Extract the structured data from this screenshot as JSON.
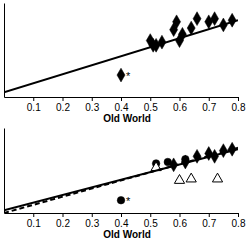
{
  "chart_data": [
    {
      "type": "scatter",
      "xlabel": "Old World",
      "xlim": [
        0,
        0.8
      ],
      "xticks": [
        0.1,
        0.2,
        0.3,
        0.4,
        0.5,
        0.6,
        0.7,
        0.8
      ],
      "ylim": [
        0.3,
        0.9
      ],
      "tick_labels": "x",
      "series": [
        {
          "type": "scatter",
          "marker": "diamond",
          "color": "#000000",
          "x": [
            0.4,
            0.5,
            0.51,
            0.52,
            0.54,
            0.58,
            0.59,
            0.6,
            0.61,
            0.64,
            0.66,
            0.7,
            0.72,
            0.75,
            0.78
          ],
          "values": [
            0.44,
            0.66,
            0.63,
            0.63,
            0.65,
            0.73,
            0.78,
            0.66,
            0.7,
            0.74,
            0.8,
            0.78,
            0.8,
            0.76,
            0.79
          ]
        },
        {
          "type": "line",
          "line_style": "solid",
          "color": "#000000",
          "x": [
            0,
            0.8
          ],
          "values": [
            0.33,
            0.79
          ]
        }
      ],
      "annotations": [
        {
          "text": "*",
          "x": 0.4,
          "y": 0.44
        }
      ]
    },
    {
      "type": "scatter",
      "xlabel": "Old World",
      "xlim": [
        0,
        0.8
      ],
      "xticks": [
        0.1,
        0.2,
        0.3,
        0.4,
        0.5,
        0.6,
        0.7,
        0.8
      ],
      "ylim": [
        0.3,
        0.9
      ],
      "tick_labels": "x",
      "series": [
        {
          "type": "scatter",
          "marker": "diamond",
          "color": "#000000",
          "x": [
            0.58,
            0.62,
            0.66,
            0.7,
            0.72,
            0.75,
            0.78
          ],
          "values": [
            0.64,
            0.66,
            0.7,
            0.72,
            0.7,
            0.74,
            0.75
          ]
        },
        {
          "type": "scatter",
          "marker": "circle",
          "color": "#000000",
          "x": [
            0.4,
            0.52,
            0.56,
            0.62
          ],
          "values": [
            0.39,
            0.65,
            0.66,
            0.68
          ]
        },
        {
          "type": "scatter",
          "marker": "triangle-open",
          "color": "#000000",
          "x": [
            0.52,
            0.6,
            0.64,
            0.73
          ],
          "values": [
            0.62,
            0.53,
            0.54,
            0.54
          ]
        },
        {
          "type": "line",
          "line_style": "solid",
          "color": "#000000",
          "x": [
            0,
            0.8
          ],
          "values": [
            0.32,
            0.75
          ]
        },
        {
          "type": "line",
          "line_style": "dashed",
          "color": "#000000",
          "x": [
            0,
            0.8
          ],
          "values": [
            0.3,
            0.76
          ]
        }
      ],
      "annotations": [
        {
          "text": "*",
          "x": 0.4,
          "y": 0.39
        }
      ]
    }
  ]
}
